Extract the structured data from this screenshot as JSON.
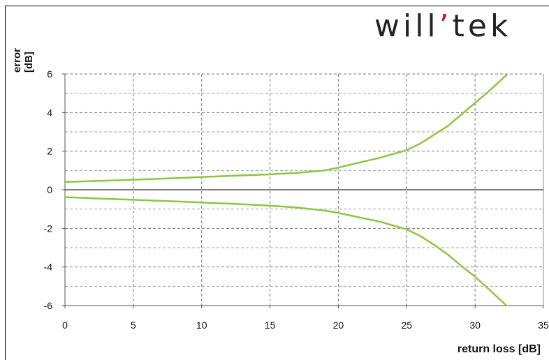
{
  "logo": {
    "part1": "will",
    "accent": "ʼ",
    "part2": "tek"
  },
  "chart_data": {
    "type": "line",
    "title": "",
    "xlabel": "return loss [dB]",
    "ylabel_line1": "error",
    "ylabel_line2": "[dB]",
    "xlim": [
      0,
      35
    ],
    "ylim": [
      -6,
      6
    ],
    "xticks": [
      0,
      5,
      10,
      15,
      20,
      25,
      30,
      35
    ],
    "yticks": [
      -6,
      -4,
      -2,
      0,
      2,
      4,
      6
    ],
    "y_minor_gridlines": [
      -5,
      -3,
      -1,
      1,
      3,
      5
    ],
    "grid": true,
    "line_color": "#8dc63f",
    "series": [
      {
        "x": [
          0,
          2,
          5,
          8,
          10,
          12,
          15,
          17,
          19,
          20,
          21,
          23,
          25,
          26,
          27,
          28,
          29,
          30,
          31,
          32.3
        ],
        "y": [
          0.4,
          0.45,
          0.52,
          0.6,
          0.66,
          0.72,
          0.8,
          0.88,
          1.0,
          1.15,
          1.32,
          1.65,
          2.05,
          2.4,
          2.85,
          3.3,
          3.9,
          4.5,
          5.1,
          5.95
        ]
      },
      {
        "x": [
          0,
          2,
          5,
          8,
          10,
          12,
          15,
          17,
          19,
          20,
          21,
          23,
          25,
          26,
          27,
          28,
          29,
          30,
          31,
          32.3
        ],
        "y": [
          -0.38,
          -0.44,
          -0.52,
          -0.6,
          -0.66,
          -0.72,
          -0.82,
          -0.92,
          -1.08,
          -1.2,
          -1.35,
          -1.65,
          -2.05,
          -2.4,
          -2.85,
          -3.35,
          -3.95,
          -4.5,
          -5.15,
          -6.0
        ]
      }
    ]
  }
}
